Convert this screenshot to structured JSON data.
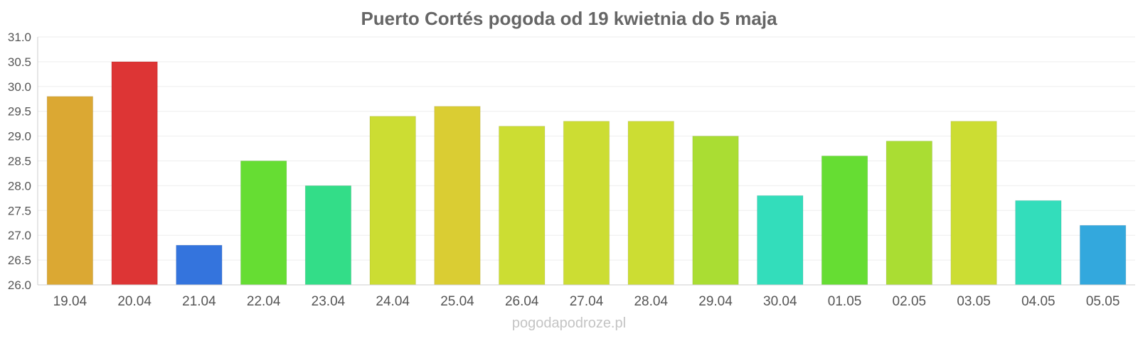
{
  "chart_data": {
    "type": "bar",
    "title": "Puerto Cortés pogoda od 19 kwietnia do 5 maja",
    "xlabel": "",
    "ylabel": "",
    "ylim": [
      26.0,
      31.0
    ],
    "yticks": [
      "26.0",
      "26.5",
      "27.0",
      "27.5",
      "28.0",
      "28.5",
      "29.0",
      "29.5",
      "30.0",
      "30.5",
      "31.0"
    ],
    "grid": true,
    "categories": [
      "19.04",
      "20.04",
      "21.04",
      "22.04",
      "23.04",
      "24.04",
      "25.04",
      "26.04",
      "27.04",
      "28.04",
      "29.04",
      "30.04",
      "01.05",
      "02.05",
      "03.05",
      "04.05",
      "05.05"
    ],
    "values": [
      29.8,
      30.5,
      26.8,
      28.5,
      28.0,
      29.4,
      29.6,
      29.2,
      29.3,
      29.3,
      29.0,
      27.8,
      28.6,
      28.9,
      29.3,
      27.7,
      27.2
    ],
    "colors": [
      "#dba833",
      "#dd3535",
      "#3474dd",
      "#66dd33",
      "#33dd88",
      "#ccdd33",
      "#dacd33",
      "#ccdd33",
      "#ccdd33",
      "#ccdd33",
      "#aadd33",
      "#33ddbb",
      "#66dd33",
      "#aadd33",
      "#ccdd33",
      "#33ddbb",
      "#33a8dd"
    ]
  },
  "footer": {
    "credit": "pogodapodroze.pl"
  }
}
